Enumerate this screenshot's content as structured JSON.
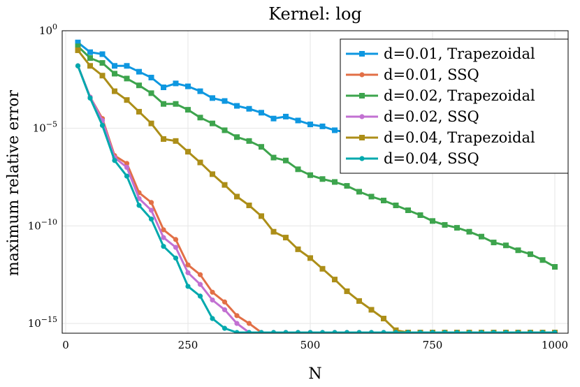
{
  "chart_data": {
    "type": "line",
    "title": "Kernel: log",
    "xlabel": "N",
    "ylabel": "maximum relative error",
    "xlim": [
      0,
      1010
    ],
    "ylim_exp": [
      -15.5,
      0
    ],
    "yscale": "log",
    "grid": true,
    "legend_placement": "top-right",
    "xticks": [
      0,
      250,
      500,
      750,
      1000
    ],
    "yticks": [
      {
        "exp": 0,
        "base": "10",
        "sup": "0"
      },
      {
        "exp": -5,
        "base": "10",
        "sup": "−5"
      },
      {
        "exp": -10,
        "base": "10",
        "sup": "−10"
      },
      {
        "exp": -15,
        "base": "10",
        "sup": "−15"
      }
    ],
    "series": [
      {
        "name": "d=0.01, Trapezoidal",
        "color": "#0e97e0",
        "marker": "square",
        "x": [
          25,
          50,
          75,
          100,
          125,
          150,
          175,
          200,
          225,
          250,
          275,
          300,
          325,
          350,
          375,
          400,
          425,
          450,
          475,
          500,
          525,
          550,
          575,
          600,
          625,
          650,
          675,
          700,
          725,
          750,
          775,
          800,
          825,
          850,
          875,
          900,
          925,
          950,
          975,
          1000
        ],
        "log10y": [
          -0.6,
          -1.1,
          -1.2,
          -1.8,
          -1.8,
          -2.1,
          -2.4,
          -2.9,
          -2.7,
          -2.85,
          -3.1,
          -3.45,
          -3.6,
          -3.85,
          -4.0,
          -4.2,
          -4.5,
          -4.4,
          -4.6,
          -4.8,
          -4.9,
          -5.1,
          -5.2,
          -5.3,
          -5.45,
          -5.5,
          -5.6,
          -5.7,
          -5.8,
          -5.9,
          -5.9,
          -6.0,
          -6.05,
          -6.1,
          -6.15,
          -6.2,
          -6.25,
          -6.3,
          -6.35,
          -6.7
        ]
      },
      {
        "name": "d=0.01, SSQ",
        "color": "#e26f46",
        "marker": "circle",
        "x": [
          25,
          50,
          75,
          100,
          125,
          150,
          175,
          200,
          225,
          250,
          275,
          300,
          325,
          350,
          375,
          400,
          425,
          450,
          475,
          500,
          525,
          550,
          575,
          600,
          625,
          650,
          675,
          700,
          725,
          750,
          775,
          800,
          825,
          850,
          875,
          900,
          925,
          950,
          975,
          1000
        ],
        "log10y": [
          -1.8,
          -3.4,
          -4.5,
          -6.4,
          -6.8,
          -8.3,
          -8.8,
          -10.2,
          -10.7,
          -12.0,
          -12.5,
          -13.4,
          -13.9,
          -14.6,
          -15.0,
          -15.5,
          -16.0,
          -16.8,
          -17.2,
          -17.2,
          -17.2,
          -17.15,
          -17.2,
          -17.15,
          -17.2,
          -17.15,
          -17.2,
          -17.15,
          -17.2,
          -17.15,
          -17.2,
          -17.2,
          -17.25,
          -17.2,
          -17.15,
          -17.2,
          -17.15,
          -17.25,
          -17.2,
          -17.2
        ]
      },
      {
        "name": "d=0.02, Trapezoidal",
        "color": "#3da44d",
        "marker": "square",
        "x": [
          25,
          50,
          75,
          100,
          125,
          150,
          175,
          200,
          225,
          250,
          275,
          300,
          325,
          350,
          375,
          400,
          425,
          450,
          475,
          500,
          525,
          550,
          575,
          600,
          625,
          650,
          675,
          700,
          725,
          750,
          775,
          800,
          825,
          850,
          875,
          900,
          925,
          950,
          975,
          1000
        ],
        "log10y": [
          -0.8,
          -1.4,
          -1.65,
          -2.2,
          -2.45,
          -2.8,
          -3.2,
          -3.75,
          -3.75,
          -4.05,
          -4.45,
          -4.75,
          -5.1,
          -5.45,
          -5.65,
          -5.95,
          -6.5,
          -6.65,
          -7.1,
          -7.4,
          -7.6,
          -7.75,
          -7.95,
          -8.25,
          -8.5,
          -8.7,
          -8.95,
          -9.2,
          -9.45,
          -9.75,
          -9.95,
          -10.1,
          -10.3,
          -10.55,
          -10.85,
          -11.0,
          -11.25,
          -11.45,
          -11.75,
          -12.1
        ]
      },
      {
        "name": "d=0.02, SSQ",
        "color": "#c271d2",
        "marker": "circle",
        "x": [
          25,
          50,
          75,
          100,
          125,
          150,
          175,
          200,
          225,
          250,
          275,
          300,
          325,
          350,
          375,
          400,
          425,
          450,
          475,
          500,
          525,
          550,
          575,
          600,
          625,
          650,
          675,
          700,
          725,
          750,
          775,
          800,
          825,
          850,
          875,
          900,
          925,
          950,
          975,
          1000
        ],
        "log10y": [
          -1.8,
          -3.4,
          -4.6,
          -6.5,
          -7.0,
          -8.6,
          -9.2,
          -10.6,
          -11.1,
          -12.4,
          -13.0,
          -13.8,
          -14.3,
          -15.0,
          -15.5,
          -16.2,
          -16.7,
          -17.2,
          -17.3,
          -17.3,
          -17.3,
          -17.25,
          -17.25,
          -17.25,
          -17.25,
          -17.2,
          -17.2,
          -17.2,
          -17.2,
          -17.2,
          -17.25,
          -17.25,
          -17.2,
          -17.2,
          -17.2,
          -17.2,
          -17.2,
          -17.2,
          -17.2,
          -17.2
        ]
      },
      {
        "name": "d=0.04, Trapezoidal",
        "color": "#ac8e18",
        "marker": "square",
        "x": [
          25,
          50,
          75,
          100,
          125,
          150,
          175,
          200,
          225,
          250,
          275,
          300,
          325,
          350,
          375,
          400,
          425,
          450,
          475,
          500,
          525,
          550,
          575,
          600,
          625,
          650,
          675,
          700,
          725,
          750,
          775,
          800,
          825,
          850,
          875,
          900,
          925,
          950,
          975,
          1000
        ],
        "log10y": [
          -1.0,
          -1.8,
          -2.3,
          -3.1,
          -3.55,
          -4.15,
          -4.75,
          -5.55,
          -5.65,
          -6.2,
          -6.75,
          -7.35,
          -7.9,
          -8.5,
          -8.95,
          -9.5,
          -10.3,
          -10.6,
          -11.2,
          -11.65,
          -12.2,
          -12.75,
          -13.35,
          -13.85,
          -14.3,
          -14.75,
          -15.35,
          -15.85,
          -16.25,
          -16.75,
          -17.05,
          -17.25,
          -17.25,
          -17.3,
          -17.3,
          -17.3,
          -17.3,
          -17.3,
          -17.3,
          -17.3
        ]
      },
      {
        "name": "d=0.04, SSQ",
        "color": "#00a9ad",
        "marker": "circle",
        "x": [
          25,
          50,
          75,
          100,
          125,
          150,
          175,
          200,
          225,
          250,
          275,
          300,
          325,
          350,
          375,
          400,
          425,
          450,
          475,
          500,
          525,
          550,
          575,
          600,
          625,
          650,
          675,
          700,
          725,
          750,
          775,
          800,
          825,
          850,
          875,
          900,
          925,
          950,
          975,
          1000
        ],
        "log10y": [
          -1.8,
          -3.45,
          -4.85,
          -6.65,
          -7.45,
          -8.95,
          -9.65,
          -11.05,
          -11.65,
          -13.1,
          -13.6,
          -14.75,
          -15.25,
          -16.2,
          -16.75,
          -16.95,
          -17.25,
          -17.2,
          -17.2,
          -17.2,
          -17.2,
          -17.2,
          -17.2,
          -17.05,
          -17.1,
          -17.25,
          -17.15,
          -17.1,
          -17.2,
          -17.15,
          -17.2,
          -17.2,
          -17.25,
          -17.2,
          -17.2,
          -17.2,
          -17.25,
          -17.2,
          -17.2,
          -17.2
        ]
      }
    ]
  }
}
